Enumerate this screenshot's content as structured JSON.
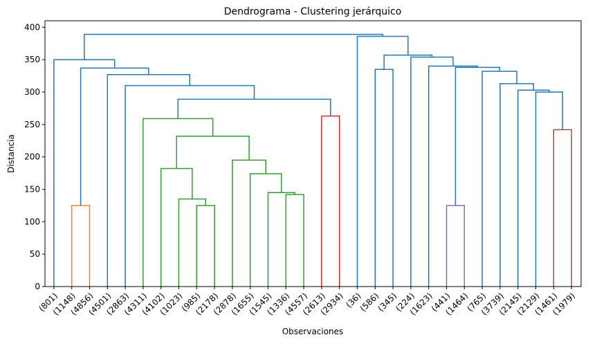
{
  "chart_data": {
    "type": "dendrogram",
    "title": "Dendrograma - Clustering jerárquico",
    "xlabel": "Observaciones",
    "ylabel": "Distancia",
    "ylim": [
      0,
      410
    ],
    "yticks": [
      0,
      50,
      100,
      150,
      200,
      250,
      300,
      350,
      400
    ],
    "leaves": [
      "(801)",
      "(1148)",
      "(4856)",
      "(4501)",
      "(2863)",
      "(4311)",
      "(4102)",
      "(1023)",
      "(985)",
      "(2178)",
      "(2878)",
      "(1655)",
      "(1545)",
      "(1336)",
      "(4557)",
      "(2613)",
      "(2934)",
      "(36)",
      "(586)",
      "(345)",
      "(224)",
      "(1623)",
      "(441)",
      "(1464)",
      "(765)",
      "(3739)",
      "(2145)",
      "(2129)",
      "(1461)",
      "(1979)"
    ],
    "links": [
      {
        "left": 1,
        "right": 2,
        "height": 125,
        "color": "#ff7f0e"
      },
      {
        "left": 8,
        "right": 9,
        "height": 125,
        "color": "#2ca02c"
      },
      {
        "left": 7,
        "right": "L2",
        "height": 135,
        "color": "#2ca02c"
      },
      {
        "left": 6,
        "right": "L3",
        "height": 182,
        "color": "#2ca02c"
      },
      {
        "left": 13,
        "right": 14,
        "height": 142,
        "color": "#2ca02c"
      },
      {
        "left": 12,
        "right": "L5",
        "height": 145,
        "color": "#2ca02c"
      },
      {
        "left": 11,
        "right": "L6",
        "height": 174,
        "color": "#2ca02c"
      },
      {
        "left": 10,
        "right": "L7",
        "height": 195,
        "color": "#2ca02c"
      },
      {
        "left": "L4",
        "right": "L8",
        "height": 232,
        "color": "#2ca02c"
      },
      {
        "left": 5,
        "right": "L9",
        "height": 259,
        "color": "#2ca02c"
      },
      {
        "left": 15,
        "right": 16,
        "height": 263,
        "color": "#d62728"
      },
      {
        "left": "L10",
        "right": "L11",
        "height": 289,
        "color": "#1f77b4"
      },
      {
        "left": 4,
        "right": "L12",
        "height": 310,
        "color": "#1f77b4"
      },
      {
        "left": 3,
        "right": "L13",
        "height": 327,
        "color": "#1f77b4"
      },
      {
        "left": "L1",
        "right": "L14",
        "height": 337,
        "color": "#1f77b4"
      },
      {
        "left": 0,
        "right": "L15",
        "height": 350,
        "color": "#1f77b4"
      },
      {
        "left": 18,
        "right": 19,
        "height": 335,
        "color": "#1f77b4"
      },
      {
        "left": 22,
        "right": 23,
        "height": 125,
        "color": "#9467bd"
      },
      {
        "left": 28,
        "right": 29,
        "height": 242,
        "color": "#8c564b"
      },
      {
        "left": 27,
        "right": "L19",
        "height": 300,
        "color": "#1f77b4"
      },
      {
        "left": 26,
        "right": "L20",
        "height": 303,
        "color": "#1f77b4"
      },
      {
        "left": 25,
        "right": "L21",
        "height": 313,
        "color": "#1f77b4"
      },
      {
        "left": 24,
        "right": "L22",
        "height": 332,
        "color": "#1f77b4"
      },
      {
        "left": "L18",
        "right": "L23",
        "height": 338,
        "color": "#1f77b4"
      },
      {
        "left": 21,
        "right": "L24",
        "height": 340,
        "color": "#1f77b4"
      },
      {
        "left": 20,
        "right": "L25",
        "height": 354,
        "color": "#1f77b4"
      },
      {
        "left": "L17",
        "right": "L26",
        "height": 357,
        "color": "#1f77b4"
      },
      {
        "left": 17,
        "right": "L27",
        "height": 386,
        "color": "#1f77b4"
      },
      {
        "left": "L16",
        "right": "L28",
        "height": 389,
        "color": "#1f77b4"
      }
    ],
    "grid": false,
    "legend": "none"
  }
}
